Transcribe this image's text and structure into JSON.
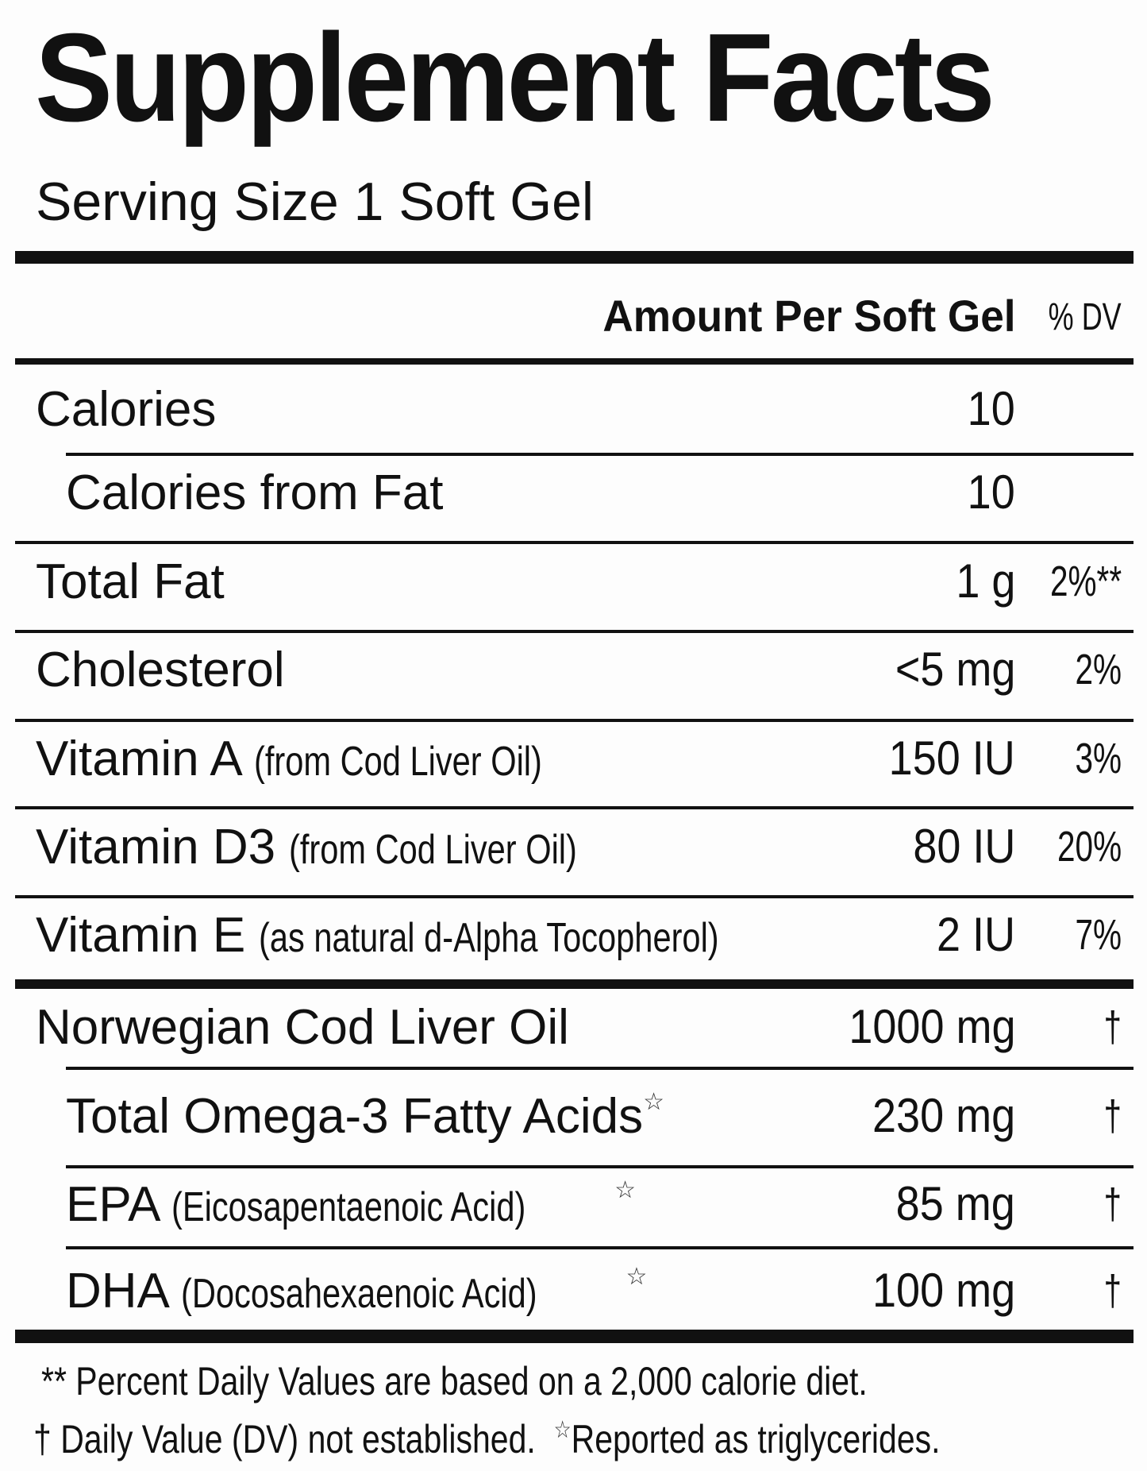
{
  "title": "Supplement Facts",
  "serving_size": "Serving Size 1 Soft Gel",
  "header": {
    "amount": "Amount Per Soft Gel",
    "dv": "% DV"
  },
  "rows": [
    {
      "label": "Calories",
      "sub": "",
      "amount": "10",
      "dv": ""
    },
    {
      "label": "Calories from Fat",
      "sub": "",
      "amount": "10",
      "dv": ""
    },
    {
      "label": "Total Fat",
      "sub": "",
      "amount": "1 g",
      "dv": "2%**"
    },
    {
      "label": "Cholesterol",
      "sub": "",
      "amount": "<5 mg",
      "dv": "2%"
    },
    {
      "label": "Vitamin A",
      "sub": "(from Cod Liver Oil)",
      "amount": "150 IU",
      "dv": "3%"
    },
    {
      "label": "Vitamin D3",
      "sub": "(from Cod Liver Oil)",
      "amount": "80 IU",
      "dv": "20%"
    },
    {
      "label": "Vitamin E",
      "sub": "(as natural d-Alpha Tocopherol)",
      "amount": "2 IU",
      "dv": "7%"
    },
    {
      "label": "Norwegian Cod Liver Oil",
      "sub": "",
      "amount": "1000 mg",
      "dv": "†"
    },
    {
      "label": "Total Omega-3 Fatty Acids",
      "sub": "",
      "star": "☆",
      "amount": "230 mg",
      "dv": "†"
    },
    {
      "label": "EPA",
      "sub": "(Eicosapentaenoic Acid)",
      "star": "☆",
      "amount": "85 mg",
      "dv": "†"
    },
    {
      "label": "DHA",
      "sub": "(Docosahexaenoic Acid)",
      "star": "☆",
      "amount": "100 mg",
      "dv": "†"
    }
  ],
  "footnotes": {
    "line1": "** Percent Daily Values are based on a 2,000 calorie diet.",
    "line2a": "† Daily Value (DV) not established.",
    "star": "☆",
    "line2b": "Reported as triglycerides."
  }
}
